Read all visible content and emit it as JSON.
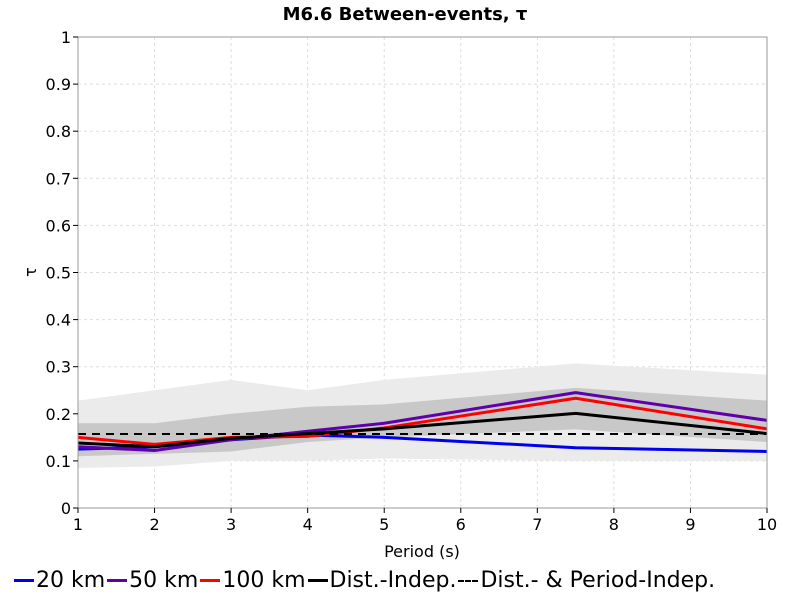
{
  "chart_data": {
    "type": "line",
    "title": "M6.6 Between-events, τ",
    "xlabel": "Period (s)",
    "ylabel": "τ",
    "xlim": [
      1,
      10
    ],
    "ylim": [
      0,
      1
    ],
    "xticks": [
      "1",
      "2",
      "3",
      "4",
      "5",
      "6",
      "7",
      "8",
      "9",
      "10"
    ],
    "yticks": [
      "0",
      "0.1",
      "0.2",
      "0.3",
      "0.4",
      "0.5",
      "0.6",
      "0.7",
      "0.8",
      "0.9",
      "1"
    ],
    "grid": true,
    "legend_position": "bottom",
    "x": [
      1,
      2,
      3,
      4,
      5,
      7.5,
      10
    ],
    "bands": [
      {
        "color": "#ebebeb",
        "lower": [
          0.085,
          0.088,
          0.1,
          0.1,
          0.105,
          0.1,
          0.1
        ],
        "upper": [
          0.228,
          0.25,
          0.272,
          0.25,
          0.272,
          0.307,
          0.283
        ]
      },
      {
        "color": "#c8c8c8",
        "lower": [
          0.11,
          0.115,
          0.12,
          0.14,
          0.15,
          0.167,
          0.14
        ],
        "upper": [
          0.18,
          0.18,
          0.2,
          0.215,
          0.22,
          0.255,
          0.228
        ]
      }
    ],
    "series": [
      {
        "name": "20 km",
        "color": "#0000ee",
        "dash": false,
        "values": [
          0.125,
          0.13,
          0.145,
          0.155,
          0.15,
          0.128,
          0.12
        ]
      },
      {
        "name": "50 km",
        "color": "#5f00aa",
        "dash": false,
        "values": [
          0.13,
          0.122,
          0.145,
          0.163,
          0.18,
          0.245,
          0.186
        ]
      },
      {
        "name": "100 km",
        "color": "#ff0000",
        "dash": false,
        "values": [
          0.15,
          0.135,
          0.15,
          0.152,
          0.17,
          0.233,
          0.168
        ]
      },
      {
        "name": "Dist.-Indep.",
        "color": "#000000",
        "dash": false,
        "values": [
          0.138,
          0.13,
          0.148,
          0.158,
          0.168,
          0.201,
          0.158
        ]
      },
      {
        "name": "Dist.- & Period-Indep.",
        "color": "#000000",
        "dash": true,
        "values": [
          0.157,
          0.157,
          0.157,
          0.157,
          0.157,
          0.157,
          0.157
        ]
      }
    ]
  }
}
